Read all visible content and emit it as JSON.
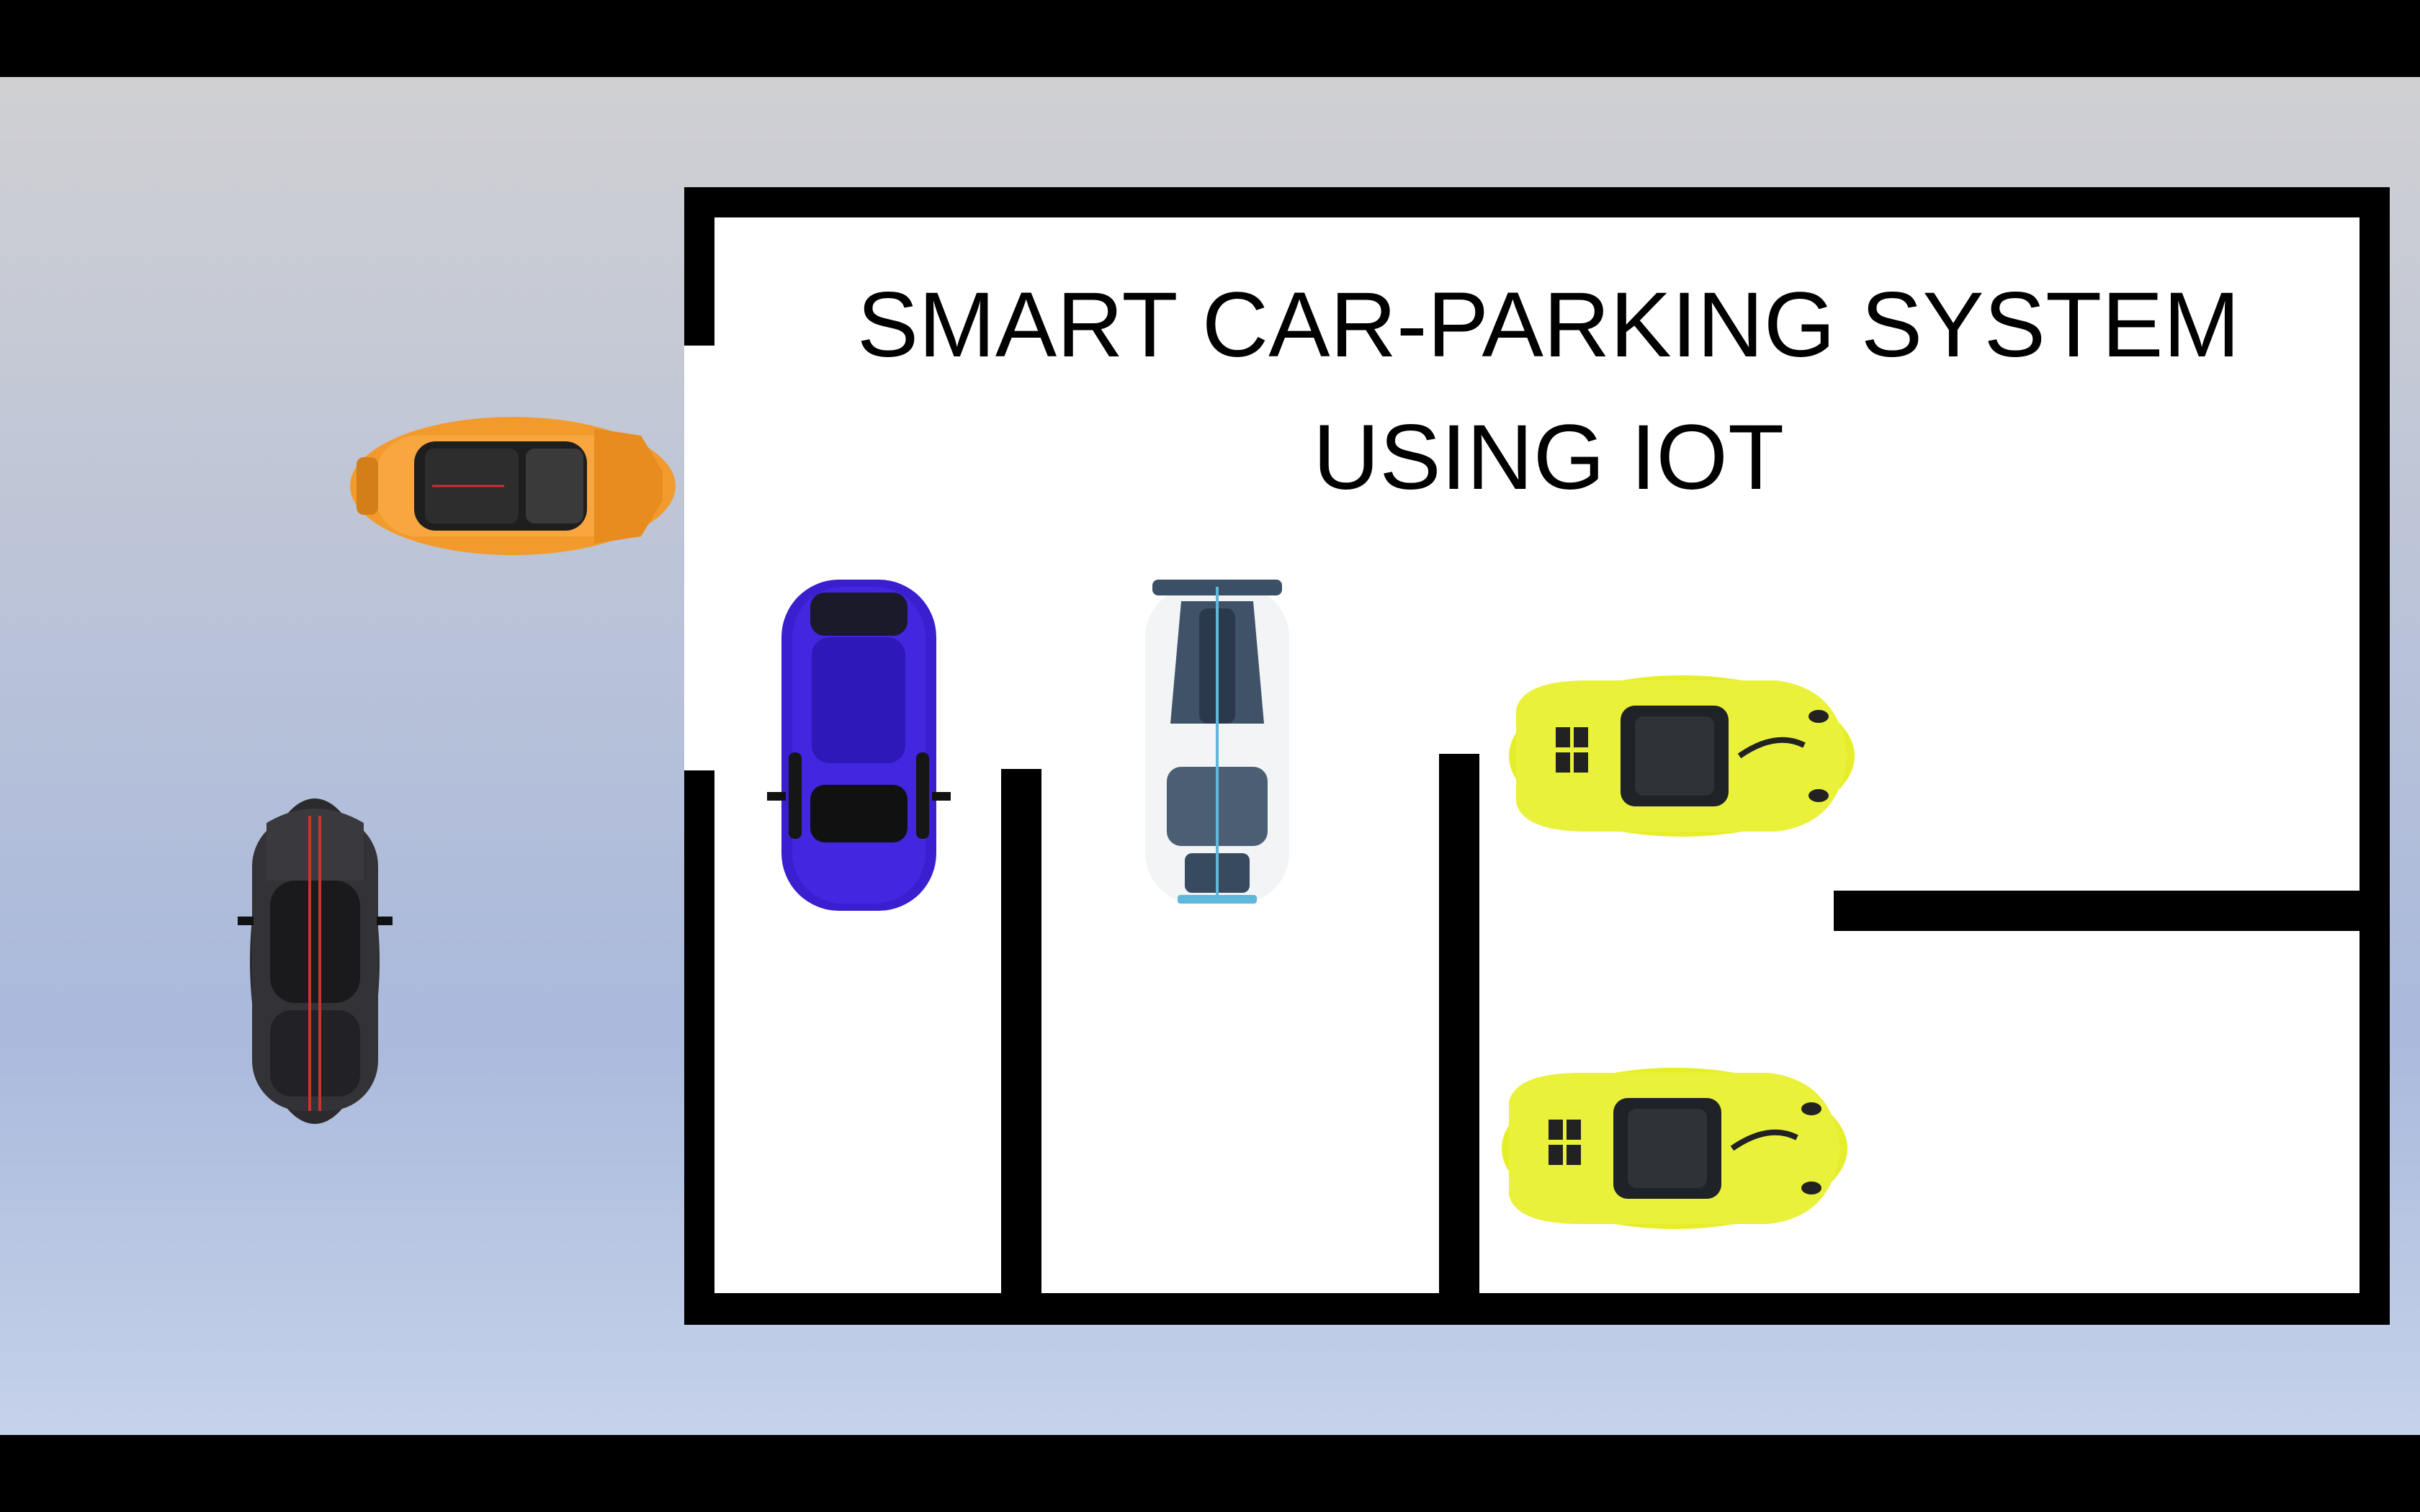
{
  "slide": {
    "title_line_1": "SMART CAR-PARKING SYSTEM",
    "title_line_2": "USING IOT"
  },
  "colors": {
    "background_top": "#d0d0d3",
    "background_bottom": "#c6d2ea",
    "wall": "#000000",
    "lot_floor": "#ffffff",
    "car_orange": "#f39a2d",
    "car_black": "#2b2b2e",
    "car_blue": "#3a1fd0",
    "car_white": "#f2f4f6",
    "car_yellow": "#e6ee2a"
  },
  "cars": [
    {
      "name": "orange-car",
      "color": "orange",
      "location": "outside lot, at entrance"
    },
    {
      "name": "black-car",
      "color": "black",
      "location": "outside lot"
    },
    {
      "name": "blue-car",
      "color": "blue",
      "location": "inside lot"
    },
    {
      "name": "white-car",
      "color": "white",
      "location": "inside lot"
    },
    {
      "name": "yellow-car-1",
      "color": "yellow",
      "location": "inside lot"
    },
    {
      "name": "yellow-car-2",
      "color": "yellow",
      "location": "parked in bay"
    }
  ]
}
